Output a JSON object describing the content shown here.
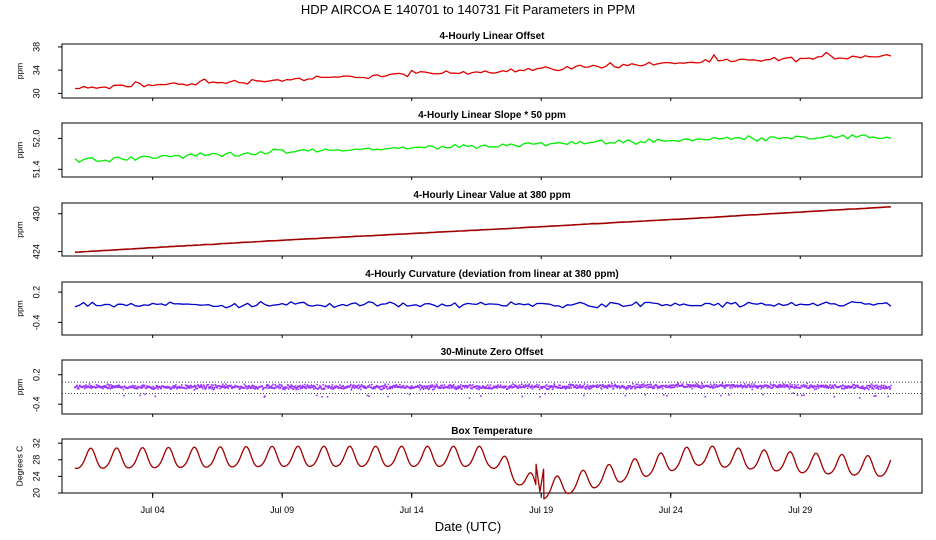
{
  "figure": {
    "title": "HDP   AIRCOA E   140701 to 140731   Fit Parameters in PPM",
    "xlabel": "Date (UTC)",
    "x_range_days": [
      -0.5,
      32.7
    ],
    "x_ticks": [
      {
        "day": 3,
        "label": "Jul 04"
      },
      {
        "day": 8,
        "label": "Jul 09"
      },
      {
        "day": 13,
        "label": "Jul 14"
      },
      {
        "day": 18,
        "label": "Jul 19"
      },
      {
        "day": 23,
        "label": "Jul 24"
      },
      {
        "day": 28,
        "label": "Jul 29"
      }
    ]
  },
  "chart_data": [
    {
      "type": "line",
      "title": "4-Hourly Linear Offset",
      "ylabel": "ppm",
      "ylim": [
        29.2,
        38.5
      ],
      "yticks": [
        30,
        34,
        38
      ],
      "ytick_labels": [
        "30",
        "34",
        "38"
      ],
      "color": "#e00000",
      "series": [
        {
          "name": "Linear Offset",
          "x": [
            0,
            4,
            8,
            12,
            16,
            20,
            24,
            28,
            31.5
          ],
          "values": [
            30.8,
            31.6,
            32.3,
            33.1,
            33.8,
            34.6,
            35.4,
            35.9,
            36.6
          ]
        }
      ]
    },
    {
      "type": "line",
      "title": "4-Hourly Linear Slope * 50 ppm",
      "ylabel": "ppm",
      "ylim": [
        51.25,
        52.3
      ],
      "yticks": [
        51.4,
        52.0
      ],
      "ytick_labels": [
        "51.4",
        "52.0"
      ],
      "color": "#00ee00",
      "series": [
        {
          "name": "Linear Slope",
          "x": [
            0,
            4,
            8,
            12,
            16,
            20,
            24,
            28,
            31.5
          ],
          "values": [
            51.58,
            51.66,
            51.74,
            51.8,
            51.86,
            51.92,
            51.98,
            52.03,
            52.02
          ]
        }
      ]
    },
    {
      "type": "line",
      "title": "4-Hourly Linear Value at 380 ppm",
      "ylabel": "ppm",
      "ylim": [
        423.3,
        431.7
      ],
      "yticks": [
        424,
        430
      ],
      "ytick_labels": [
        "424",
        "430"
      ],
      "color": "#a00000",
      "series": [
        {
          "name": "Linear Value",
          "x": [
            0,
            8,
            16,
            24,
            31.5
          ],
          "values": [
            423.9,
            425.8,
            427.5,
            429.3,
            431.1
          ]
        }
      ]
    },
    {
      "type": "line",
      "title": "4-Hourly Curvature (deviation from linear at 380 ppm)",
      "ylabel": "ppm",
      "ylim": [
        -0.65,
        0.4
      ],
      "yticks": [
        -0.4,
        0.2
      ],
      "ytick_labels": [
        "-0.4",
        "0.2"
      ],
      "color": "#0000cc",
      "series": [
        {
          "name": "Curvature",
          "x": [
            0,
            8,
            16,
            24,
            31.5
          ],
          "values": [
            -0.05,
            -0.05,
            -0.05,
            -0.05,
            -0.05
          ]
        }
      ]
    },
    {
      "type": "scatter",
      "title": "30-Minute Zero Offset",
      "ylabel": "ppm",
      "ylim": [
        -0.6,
        0.5
      ],
      "yticks": [
        -0.4,
        0.2
      ],
      "ytick_labels": [
        "-0.4",
        "0.2"
      ],
      "hlines": [
        0.05,
        -0.18
      ],
      "color": "#9933ff",
      "series": [
        {
          "name": "Zero Offset",
          "x": [
            0,
            8,
            16,
            24,
            31.5
          ],
          "values": [
            -0.05,
            -0.05,
            -0.05,
            -0.03,
            -0.05
          ]
        }
      ]
    },
    {
      "type": "line",
      "title": "Box Temperature",
      "ylabel": "Degrees C",
      "ylim": [
        20,
        33
      ],
      "yticks": [
        20,
        24,
        28,
        32
      ],
      "ytick_labels": [
        "20",
        "24",
        "28",
        "32"
      ],
      "color": "#a00000",
      "series": [
        {
          "name": "Box Temperature",
          "x": [
            0,
            8,
            16,
            18,
            24,
            28,
            31.5
          ],
          "values": [
            28,
            28.5,
            28.5,
            20.5,
            28.8,
            27,
            26
          ]
        }
      ]
    }
  ]
}
